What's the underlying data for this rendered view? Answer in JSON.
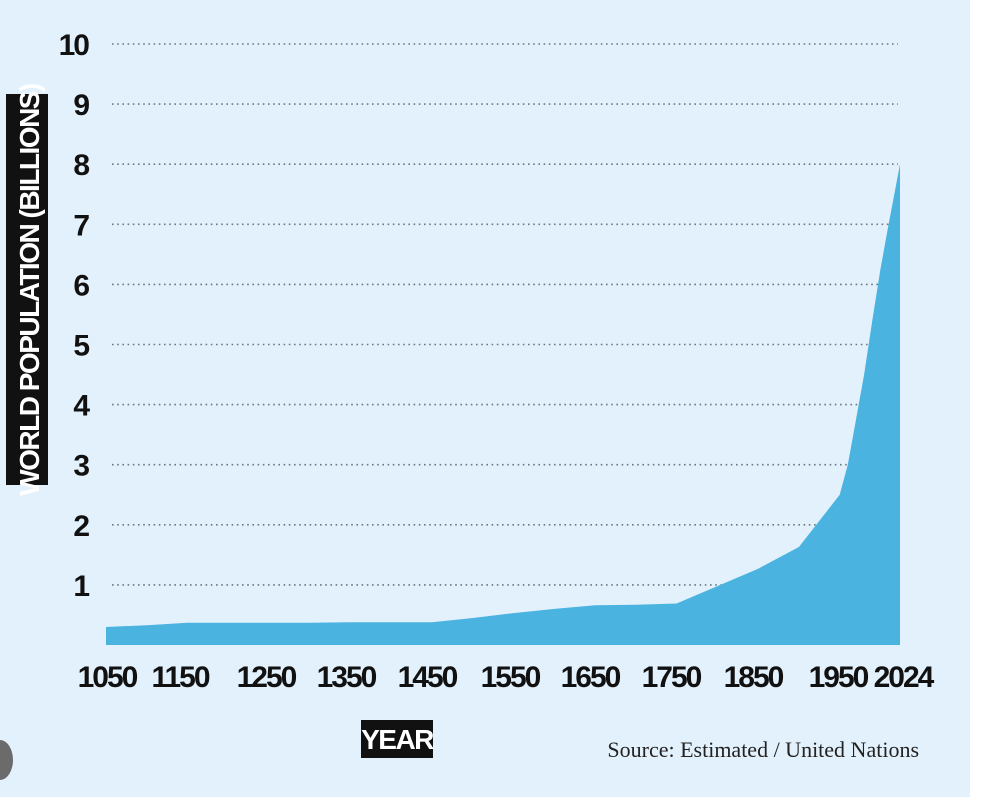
{
  "chart_data": {
    "type": "area",
    "title": "",
    "xlabel": "YEAR",
    "ylabel": "WORLD POPULATION (BILLIONS)",
    "source": "Source: Estimated / United Nations",
    "ylim": [
      0,
      10
    ],
    "xlim": [
      1050,
      2024
    ],
    "y_ticks": [
      "1",
      "2",
      "3",
      "4",
      "5",
      "6",
      "7",
      "8",
      "9",
      "10"
    ],
    "x_ticks": [
      "1050",
      "1150",
      "1250",
      "1350",
      "1450",
      "1550",
      "1650",
      "1750",
      "1850",
      "1950",
      "2024"
    ],
    "grid": "horizontal dotted",
    "colors": {
      "area": "#4ab3e0",
      "background": "#e3f1fc",
      "label_box": "#111111"
    },
    "series": [
      {
        "x": [
          1050,
          1100,
          1150,
          1200,
          1250,
          1300,
          1350,
          1400,
          1450,
          1500,
          1550,
          1600,
          1650,
          1700,
          1750,
          1800,
          1850,
          1900,
          1950,
          1960,
          1970,
          1980,
          1990,
          2000,
          2010,
          2024
        ],
        "values": [
          0.3,
          0.33,
          0.37,
          0.37,
          0.37,
          0.37,
          0.38,
          0.38,
          0.38,
          0.45,
          0.53,
          0.6,
          0.66,
          0.67,
          0.69,
          0.98,
          1.27,
          1.63,
          2.5,
          3.0,
          3.75,
          4.5,
          5.4,
          6.25,
          7.0,
          8.0
        ]
      }
    ]
  }
}
